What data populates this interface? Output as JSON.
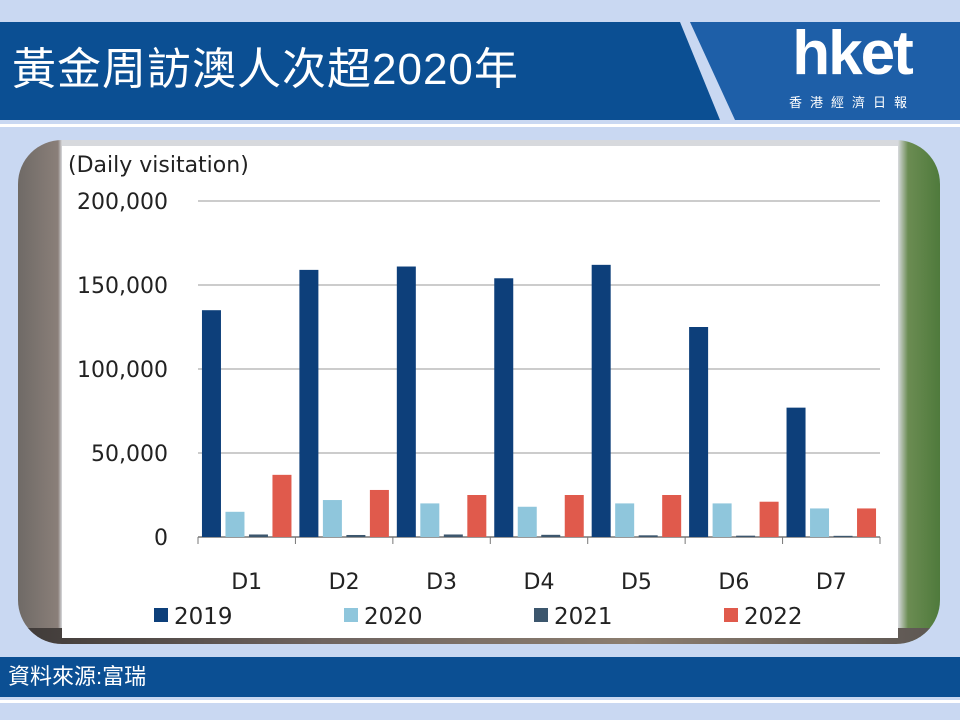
{
  "header": {
    "title": "黃金周訪澳人次超2020年",
    "logo_text": "hket",
    "logo_subtitle": "香港經濟日報"
  },
  "footer": {
    "source": "資料來源:富瑞"
  },
  "colors": {
    "header_bg": "#0b4f93",
    "s2019": "#0d3f7a",
    "s2020": "#8fc6dc",
    "s2021": "#3c566d",
    "s2022": "#e05a4c"
  },
  "chart_data": {
    "type": "bar",
    "ylabel": "(Daily visitation)",
    "ylim": [
      0,
      200000
    ],
    "yticks": [
      0,
      50000,
      100000,
      150000,
      200000
    ],
    "ytick_labels": [
      "0",
      "50,000",
      "100,000",
      "150,000",
      "200,000"
    ],
    "grid": true,
    "legend_position": "bottom",
    "categories": [
      "D1",
      "D2",
      "D3",
      "D4",
      "D5",
      "D6",
      "D7"
    ],
    "series": [
      {
        "name": "2019",
        "color": "#0d3f7a",
        "values": [
          135000,
          159000,
          161000,
          154000,
          162000,
          125000,
          77000
        ]
      },
      {
        "name": "2020",
        "color": "#8fc6dc",
        "values": [
          15000,
          22000,
          20000,
          18000,
          20000,
          20000,
          17000
        ]
      },
      {
        "name": "2021",
        "color": "#3c566d",
        "values": [
          1500,
          1200,
          1500,
          1300,
          1000,
          800,
          700
        ]
      },
      {
        "name": "2022",
        "color": "#e05a4c",
        "values": [
          37000,
          28000,
          25000,
          25000,
          25000,
          21000,
          17000
        ]
      }
    ]
  }
}
